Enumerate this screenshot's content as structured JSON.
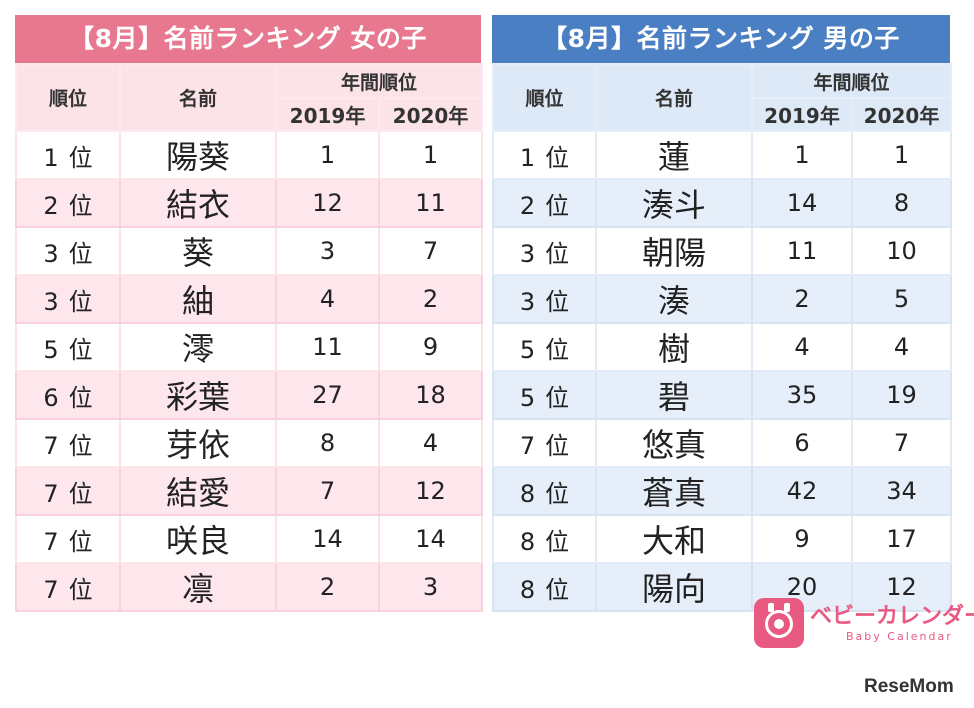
{
  "girls": {
    "title": "【8月】名前ランキング 女の子",
    "header": {
      "rank": "順位",
      "name": "名前",
      "annual": "年間順位",
      "y2019": "2019年",
      "y2020": "2020年"
    },
    "rows": [
      {
        "rank": "1",
        "name": "陽葵",
        "y2019": "1",
        "y2020": "1"
      },
      {
        "rank": "2",
        "name": "結衣",
        "y2019": "12",
        "y2020": "11"
      },
      {
        "rank": "3",
        "name": "葵",
        "y2019": "3",
        "y2020": "7"
      },
      {
        "rank": "3",
        "name": "紬",
        "y2019": "4",
        "y2020": "2"
      },
      {
        "rank": "5",
        "name": "澪",
        "y2019": "11",
        "y2020": "9"
      },
      {
        "rank": "6",
        "name": "彩葉",
        "y2019": "27",
        "y2020": "18"
      },
      {
        "rank": "7",
        "name": "芽依",
        "y2019": "8",
        "y2020": "4"
      },
      {
        "rank": "7",
        "name": "結愛",
        "y2019": "7",
        "y2020": "12"
      },
      {
        "rank": "7",
        "name": "咲良",
        "y2019": "14",
        "y2020": "14"
      },
      {
        "rank": "7",
        "name": "凛",
        "y2019": "2",
        "y2020": "3"
      }
    ]
  },
  "boys": {
    "title": "【8月】名前ランキング 男の子",
    "header": {
      "rank": "順位",
      "name": "名前",
      "annual": "年間順位",
      "y2019": "2019年",
      "y2020": "2020年"
    },
    "rows": [
      {
        "rank": "1",
        "name": "蓮",
        "y2019": "1",
        "y2020": "1"
      },
      {
        "rank": "2",
        "name": "湊斗",
        "y2019": "14",
        "y2020": "8"
      },
      {
        "rank": "3",
        "name": "朝陽",
        "y2019": "11",
        "y2020": "10"
      },
      {
        "rank": "3",
        "name": "湊",
        "y2019": "2",
        "y2020": "5"
      },
      {
        "rank": "5",
        "name": "樹",
        "y2019": "4",
        "y2020": "4"
      },
      {
        "rank": "5",
        "name": "碧",
        "y2019": "35",
        "y2020": "19"
      },
      {
        "rank": "7",
        "name": "悠真",
        "y2019": "6",
        "y2020": "7"
      },
      {
        "rank": "8",
        "name": "蒼真",
        "y2019": "42",
        "y2020": "34"
      },
      {
        "rank": "8",
        "name": "大和",
        "y2019": "9",
        "y2020": "17"
      },
      {
        "rank": "8",
        "name": "陽向",
        "y2019": "20",
        "y2020": "12"
      }
    ]
  },
  "rank_suffix": "位",
  "logo": {
    "text": "ベビーカレンダー",
    "sub": "Baby Calendar",
    "icon": "baby-calendar-icon",
    "color": "#e85a82"
  },
  "watermark": "ReseMom",
  "colors": {
    "girls_accent": "#e8788f",
    "boys_accent": "#4a7fc4"
  }
}
